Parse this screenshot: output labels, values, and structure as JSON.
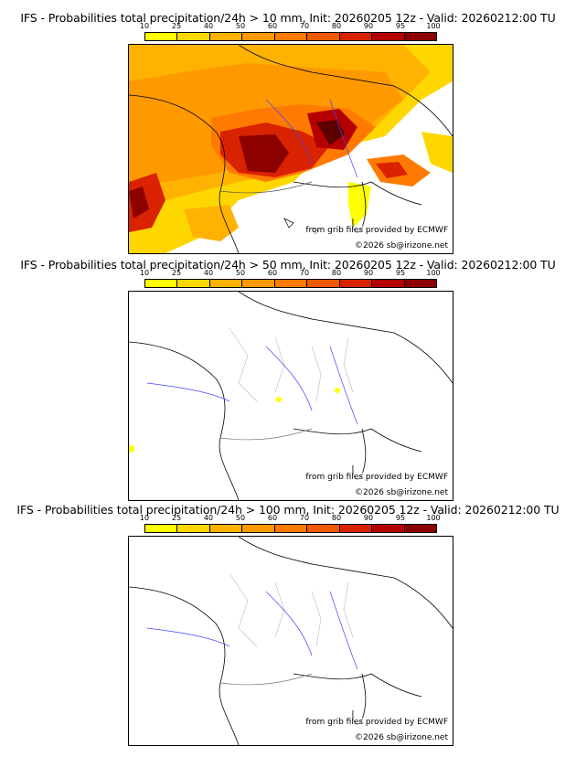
{
  "colorbar": {
    "ticks": [
      "10",
      "25",
      "40",
      "50",
      "60",
      "70",
      "80",
      "90",
      "95",
      "100"
    ],
    "colors": [
      "#ffff00",
      "#ffd700",
      "#ffb200",
      "#ff9900",
      "#ff7a00",
      "#f05a00",
      "#d92200",
      "#b50000",
      "#8c0000",
      "#5c0000"
    ]
  },
  "panels": [
    {
      "title": "IFS - Probabilities total precipitation/24h > 10 mm, Init: 20260205 12z - Valid: 20260212:00 TU",
      "credit": "from grib files provided by ECMWF",
      "copyright": "©2026 sb@irizone.net"
    },
    {
      "title": "IFS - Probabilities total precipitation/24h > 50 mm, Init: 20260205 12z - Valid: 20260212:00 TU",
      "credit": "from grib files provided by ECMWF",
      "copyright": "©2026 sb@irizone.net"
    },
    {
      "title": "IFS - Probabilities total precipitation/24h > 100 mm, Init: 20260205 12z - Valid: 20260212:00 TU",
      "credit": "from grib files provided by ECMWF",
      "copyright": "©2026 sb@irizone.net"
    }
  ]
}
